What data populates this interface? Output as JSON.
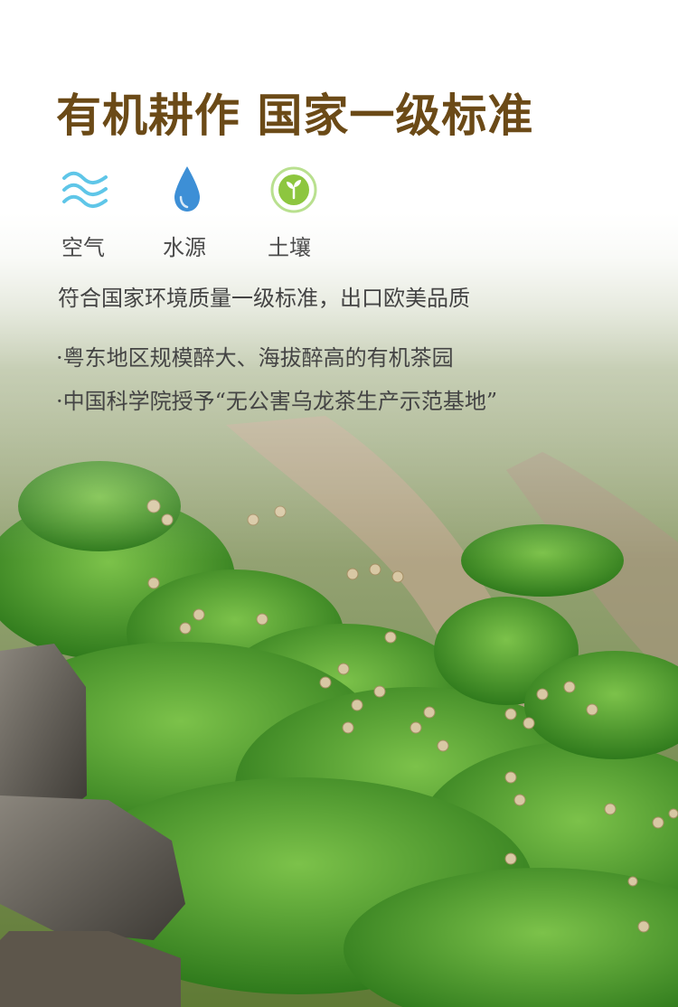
{
  "headline": "有机耕作 国家一级标准",
  "features": [
    {
      "icon": "air-waves-icon",
      "label": "空气",
      "color": "#5fc6e8"
    },
    {
      "icon": "water-drop-icon",
      "label": "水源",
      "color": "#3d8fd6"
    },
    {
      "icon": "soil-sprout-icon",
      "label": "土壤",
      "color": "#8dc63f"
    }
  ],
  "standard_text": "符合国家环境质量一级标准，出口欧美品质",
  "bullets": [
    "·粤东地区规模醉大、海拔醉高的有机茶园",
    "·中国科学院授予“无公害乌龙茶生产示范基地”"
  ],
  "colors": {
    "headline": "#6b4a17",
    "body_text": "#444444",
    "tea_green": "#4e9a2a"
  }
}
